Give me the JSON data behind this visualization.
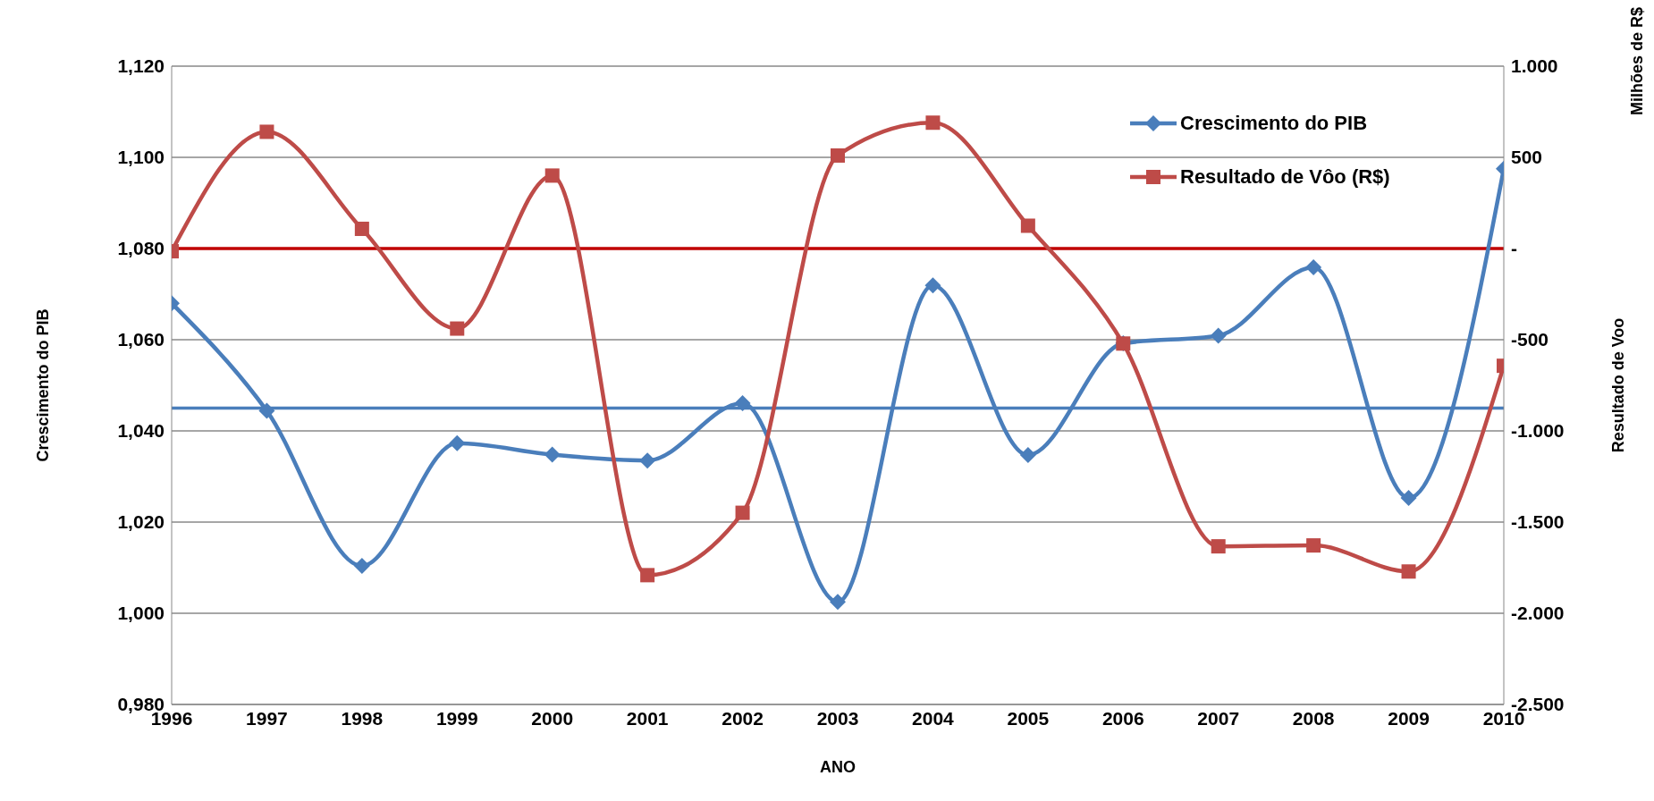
{
  "chart_data": {
    "type": "line",
    "xlabel": "ANO",
    "ylabel": "Crescimento do PIB",
    "y2label": "Resultado de Voo",
    "annotations": [
      "Milhões de R$"
    ],
    "x": [
      1996,
      1997,
      1998,
      1999,
      2000,
      2001,
      2002,
      2003,
      2004,
      2005,
      2006,
      2007,
      2008,
      2009,
      2010
    ],
    "xlim": [
      1996,
      2010
    ],
    "xticks": [
      1996,
      1997,
      1998,
      1999,
      2000,
      2001,
      2002,
      2003,
      2004,
      2005,
      2006,
      2007,
      2008,
      2009,
      2010
    ],
    "ylim": [
      0.98,
      1.12
    ],
    "yticks": [
      {
        "value": 0.98,
        "label": "0,980"
      },
      {
        "value": 1.0,
        "label": "1,000"
      },
      {
        "value": 1.02,
        "label": "1,020"
      },
      {
        "value": 1.04,
        "label": "1,040"
      },
      {
        "value": 1.06,
        "label": "1,060"
      },
      {
        "value": 1.08,
        "label": "1,080"
      },
      {
        "value": 1.1,
        "label": "1,100"
      },
      {
        "value": 1.12,
        "label": "1,120"
      }
    ],
    "y2lim": [
      -2500,
      1000
    ],
    "y2ticks": [
      {
        "value": -2500,
        "label": "-2.500"
      },
      {
        "value": -2000,
        "label": "-2.000"
      },
      {
        "value": -1500,
        "label": "-1.500"
      },
      {
        "value": -1000,
        "label": "-1.000"
      },
      -500,
      {
        "value": 0,
        "label": "-"
      },
      500,
      {
        "value": 1000,
        "label": "1.000"
      }
    ],
    "series": [
      {
        "name": "Crescimento do PIB",
        "color": "#4a7ebb",
        "marker": "diamond",
        "values": [
          1.068,
          1.0444,
          1.0104,
          1.0373,
          1.0348,
          1.0335,
          1.0461,
          1.0025,
          1.0719,
          1.0347,
          1.0592,
          1.0609,
          1.0759,
          1.0253,
          1.0975
        ]
      },
      {
        "name": "Resultado de Vôo (R$)",
        "color": "#be4b48",
        "marker": "square",
        "axis": "y2",
        "values": [
          -15,
          640,
          108,
          -439,
          400,
          -1791,
          -1449,
          510,
          690,
          125,
          -521,
          -1633,
          -1628,
          -1771,
          -643
        ]
      }
    ],
    "ref_lines": [
      {
        "axis": "y",
        "value": 1.045,
        "color": "#4a7ebb"
      },
      {
        "axis": "y2",
        "value": 0,
        "color": "#c00000"
      }
    ],
    "grid": "y",
    "legend": "top right"
  }
}
